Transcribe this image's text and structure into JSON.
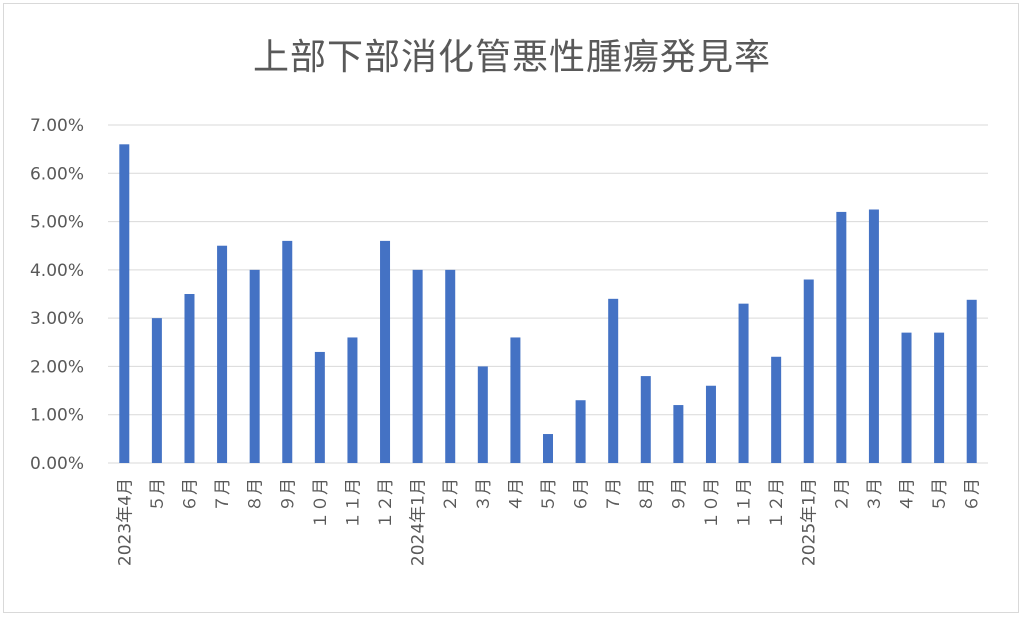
{
  "chart_data": {
    "type": "bar",
    "title": "上部下部消化管悪性腫瘍発見率",
    "xlabel": "",
    "ylabel": "",
    "ylim": [
      0,
      0.07
    ],
    "yticks": [
      "0.00%",
      "1.00%",
      "2.00%",
      "3.00%",
      "4.00%",
      "5.00%",
      "6.00%",
      "7.00%"
    ],
    "grid": true,
    "color": "#4472c4",
    "categories": [
      "2023年4月",
      "５月",
      "６月",
      "７月",
      "８月",
      "９月",
      "１０月",
      "１１月",
      "１２月",
      "2024年1月",
      "２月",
      "３月",
      "４月",
      "５月",
      "６月",
      "７月",
      "８月",
      "９月",
      "１０月",
      "１１月",
      "１２月",
      "2025年1月",
      "２月",
      "３月",
      "４月",
      "５月",
      "６月"
    ],
    "values": [
      0.066,
      0.03,
      0.035,
      0.045,
      0.04,
      0.046,
      0.023,
      0.026,
      0.046,
      0.04,
      0.04,
      0.02,
      0.026,
      0.006,
      0.013,
      0.034,
      0.018,
      0.012,
      0.016,
      0.033,
      0.022,
      0.038,
      0.052,
      0.0525,
      0.027,
      0.027,
      0.0338
    ]
  }
}
